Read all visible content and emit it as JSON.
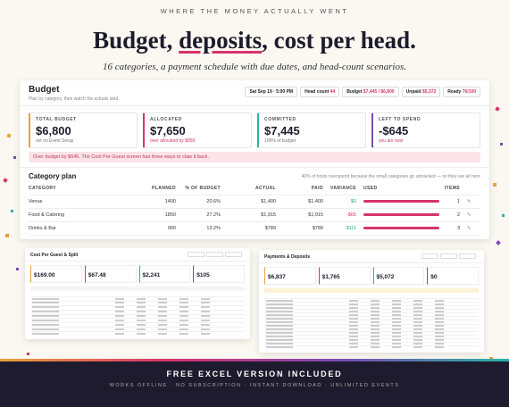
{
  "header": {
    "eyebrow": "WHERE THE MONEY ACTUALLY WENT",
    "title_parts": [
      "Budget, ",
      "deposits",
      ", cost per head."
    ],
    "subtitle": "16 categories, a payment schedule with due dates, and head-count scenarios."
  },
  "budget_window": {
    "title": "Budget",
    "subtitle": "Plan by category, then watch the actuals land.",
    "pills": [
      {
        "label": "Sat Sep 19 · 5:00 PM"
      },
      {
        "label": "Head count",
        "value": "44"
      },
      {
        "label": "Budget",
        "value": "$7,445 / $6,800"
      },
      {
        "label": "Unpaid",
        "value": "$5,372"
      },
      {
        "label": "Ready",
        "value": "76/100"
      }
    ],
    "cards": [
      {
        "label": "TOTAL BUDGET",
        "value": "$6,800",
        "note": "set on Event Setup",
        "color": "#e9a23b",
        "note_color": "#777"
      },
      {
        "label": "ALLOCATED",
        "value": "$7,650",
        "note": "over allocated by $850",
        "color": "#d6336c",
        "note_color": "#d6336c"
      },
      {
        "label": "COMMITTED",
        "value": "$7,445",
        "note": "109% of budget",
        "color": "#2bb3a3",
        "note_color": "#777"
      },
      {
        "label": "LEFT TO SPEND",
        "value": "-$645",
        "note": "you are over",
        "color": "#7b4bb5",
        "note_color": "#d6336c"
      }
    ],
    "alert": "Over budget by $645. The Cost Per Guest screen has three ways to claw it back.",
    "plan": {
      "title": "Category plan",
      "note": "40% of hosts overspend because the small categories go untracked — so they are all here",
      "columns": [
        "CATEGORY",
        "PLANNED",
        "% OF BUDGET",
        "ACTUAL",
        "PAID",
        "VARIANCE",
        "USED",
        "ITEMS"
      ],
      "rows": [
        {
          "cells": [
            "Venue",
            "1400",
            "20.6%",
            "$1,400",
            "$1,400",
            "$0",
            "1"
          ],
          "variance_color": "#2bb36b"
        },
        {
          "cells": [
            "Food & Catering",
            "1850",
            "27.2%",
            "$1,915",
            "$1,915",
            "-$65",
            "2"
          ],
          "variance_color": "#d6336c"
        },
        {
          "cells": [
            "Drinks & Bar",
            "900",
            "13.2%",
            "$789",
            "$789",
            "$111",
            "3"
          ],
          "variance_color": "#2bb36b"
        }
      ]
    }
  },
  "cost_window": {
    "title": "Cost Per Guest & Split",
    "values": [
      "$169.00",
      "$67.48",
      "$2,241",
      "$105"
    ]
  },
  "payments_window": {
    "title": "Payments & Deposits",
    "values": [
      "$6,837",
      "$1,765",
      "$5,072",
      "$0"
    ]
  },
  "footer": {
    "title": "FREE EXCEL VERSION INCLUDED",
    "subtitle": "WORKS OFFLINE · NO SUBSCRIPTION · INSTANT DOWNLOAD · UNLIMITED EVENTS"
  }
}
